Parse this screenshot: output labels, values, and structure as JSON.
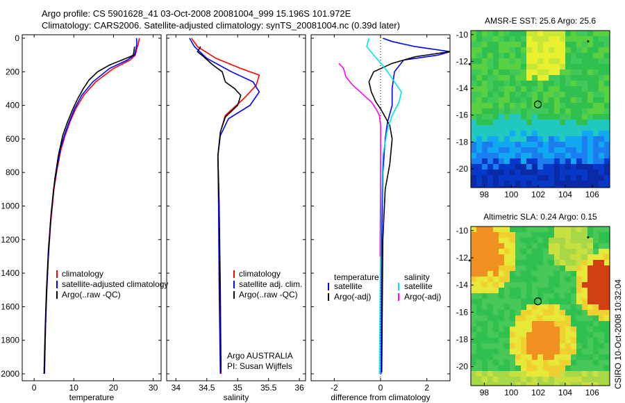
{
  "title": {
    "line1": "Argo profile: CS 5901628_41 03-Oct-2008 20081004_999 15.196S 101.972E",
    "line2": "Climatology: CARS2006. Satellite-adjusted climatology: synTS_20081004.nc (0.39d later)"
  },
  "credit": "CSIRO 10-Oct-2008 10:32:04",
  "colors": {
    "climatology": "#ff0000",
    "satellite": "#0000ff",
    "argo": "#000000",
    "sal_sat": "#00e5e5",
    "sal_argo": "#ff00ff"
  },
  "chart_data": [
    {
      "type": "line",
      "xlabel": "temperature",
      "xlim": [
        -3,
        32
      ],
      "ylim": [
        0,
        2050
      ],
      "xticks": [
        "0",
        "10",
        "20",
        "30"
      ],
      "xtick_values": [
        0,
        10,
        20,
        30
      ],
      "yticks": [
        "0",
        "200",
        "400",
        "600",
        "800",
        "1000",
        "1200",
        "1400",
        "1600",
        "1800",
        "2000"
      ],
      "ytick_values": [
        0,
        200,
        400,
        600,
        800,
        1000,
        1200,
        1400,
        1600,
        1800,
        2000
      ],
      "legend": [
        "climatology",
        "satellite-adjusted climatology",
        "Argo(..raw -QC)"
      ],
      "series": [
        {
          "name": "climatology",
          "color": "#ff0000",
          "x": [
            26.5,
            26.3,
            25.9,
            25.5,
            24.2,
            20,
            15.5,
            12.5,
            10.5,
            9,
            7.8,
            6.8,
            5.8,
            5,
            4.2,
            3.6,
            3.2,
            2.9,
            2.7,
            2.6
          ],
          "y": [
            0,
            30,
            60,
            100,
            130,
            180,
            260,
            340,
            420,
            500,
            580,
            660,
            780,
            900,
            1100,
            1300,
            1500,
            1700,
            1900,
            2000
          ]
        },
        {
          "name": "satellite-adjusted climatology",
          "color": "#0000ff",
          "x": [
            25.8,
            25.9,
            25.7,
            25.3,
            23.5,
            19,
            14.8,
            12,
            10.2,
            8.8,
            7.6,
            6.6,
            5.7,
            4.9,
            4.1,
            3.6,
            3.2,
            2.9,
            2.7,
            2.6
          ],
          "y": [
            0,
            30,
            60,
            100,
            130,
            180,
            260,
            340,
            420,
            500,
            580,
            660,
            780,
            900,
            1100,
            1300,
            1500,
            1700,
            1900,
            2000
          ]
        },
        {
          "name": "Argo(..raw -QC)",
          "color": "#000000",
          "x": [
            25.3,
            25.2,
            25,
            24.2,
            19,
            16,
            13.8,
            12.4,
            11,
            9.8,
            8.4,
            7.2,
            6.1,
            5.2,
            4.3,
            3.6,
            3.1,
            2.8,
            2.6,
            2.5
          ],
          "y": [
            50,
            70,
            100,
            110,
            160,
            200,
            250,
            300,
            360,
            420,
            500,
            580,
            700,
            840,
            1040,
            1260,
            1500,
            1720,
            1900,
            2000
          ]
        }
      ]
    },
    {
      "type": "line",
      "xlabel": "salinity",
      "xlim": [
        33.85,
        36.1
      ],
      "ylim": [
        0,
        2050
      ],
      "xticks": [
        "34",
        "34.5",
        "35",
        "35.5",
        "36"
      ],
      "xtick_values": [
        34,
        34.5,
        35,
        35.5,
        36
      ],
      "legend": [
        "climatology",
        "satellite adj. clim.",
        "Argo(..raw -QC)"
      ],
      "annotation": [
        "Argo AUSTRALIA",
        "PI: Susan Wijffels"
      ],
      "series": [
        {
          "name": "climatology",
          "color": "#ff0000",
          "x": [
            34.25,
            34.35,
            34.65,
            35.05,
            35.35,
            35.3,
            35.1,
            34.8,
            34.72,
            34.68,
            34.7,
            34.71,
            34.73
          ],
          "y": [
            0,
            50,
            120,
            180,
            220,
            280,
            360,
            460,
            560,
            700,
            1000,
            1500,
            2000
          ]
        },
        {
          "name": "satellite adj. clim.",
          "color": "#0000ff",
          "x": [
            34.22,
            34.3,
            34.5,
            34.9,
            35.25,
            35.35,
            35.2,
            34.85,
            34.72,
            34.68,
            34.69,
            34.7,
            34.72
          ],
          "y": [
            0,
            50,
            120,
            200,
            260,
            320,
            400,
            480,
            580,
            700,
            1000,
            1500,
            2000
          ]
        },
        {
          "name": "Argo(..raw -QC)",
          "color": "#000000",
          "x": [
            34.4,
            34.35,
            34.45,
            34.6,
            34.75,
            34.8,
            34.95,
            35.05,
            35,
            34.8,
            34.72,
            34.68,
            34.7,
            34.72,
            34.73
          ],
          "y": [
            50,
            80,
            110,
            160,
            200,
            260,
            300,
            340,
            400,
            470,
            560,
            700,
            1000,
            1500,
            1990
          ]
        }
      ]
    },
    {
      "type": "line",
      "xlabel": "difference from climatology",
      "xlim": [
        -3,
        3
      ],
      "ylim": [
        0,
        2050
      ],
      "xticks": [
        "-2",
        "0",
        "2"
      ],
      "xtick_values": [
        -2,
        0,
        2
      ],
      "legend_groups": [
        {
          "header": "temperature",
          "items": [
            "satellite",
            "Argo(-adj)"
          ]
        },
        {
          "header": "salinity",
          "items": [
            "satellite",
            "Argo(-adj)"
          ]
        }
      ],
      "series": [
        {
          "name": "temperature satellite",
          "color": "#0000ff",
          "x": [
            0.1,
            0.5,
            1.5,
            3,
            2.5,
            1,
            0.6,
            0.5,
            0.5,
            0.3,
            0.2,
            0.1,
            0.05,
            0.02
          ],
          "y": [
            0,
            20,
            50,
            80,
            100,
            130,
            200,
            300,
            400,
            500,
            600,
            800,
            1200,
            2000
          ]
        },
        {
          "name": "temperature Argo(-adj)",
          "color": "#000000",
          "x": [
            3,
            1.5,
            0.5,
            -0.3,
            -0.5,
            -0.4,
            -0.2,
            0,
            0.2,
            0.4,
            0.5,
            0.4,
            0.2,
            0.1,
            0.05
          ],
          "y": [
            80,
            110,
            150,
            200,
            260,
            320,
            380,
            420,
            470,
            520,
            600,
            750,
            900,
            1200,
            1990
          ]
        },
        {
          "name": "salinity satellite",
          "color": "#00e5e5",
          "x": [
            -0.5,
            -0.6,
            -0.3,
            0.2,
            0.6,
            0.9,
            0.8,
            0.5,
            0.3,
            0.1,
            0,
            -0.05
          ],
          "y": [
            0,
            50,
            100,
            180,
            260,
            320,
            380,
            460,
            540,
            700,
            1200,
            2000
          ]
        },
        {
          "name": "salinity Argo(-adj)",
          "color": "#ff00ff",
          "x": [
            -1.8,
            -1.6,
            -1.5,
            -1.2,
            -0.8,
            -0.4,
            -0.2,
            -0.05,
            0,
            0,
            -0.02
          ],
          "y": [
            150,
            180,
            230,
            280,
            330,
            380,
            420,
            460,
            520,
            800,
            1300
          ]
        }
      ]
    }
  ],
  "maps": [
    {
      "title": "AMSR-E SST: 25.6 Argo: 25.6",
      "xticks": [
        "98",
        "100",
        "102",
        "104",
        "106"
      ],
      "yticks": [
        "-10",
        "-12",
        "-14",
        "-16",
        "-18",
        "-20"
      ]
    },
    {
      "title": "Altimetric SLA: 0.24 Argo: 0.15",
      "xticks": [
        "98",
        "100",
        "102",
        "104",
        "106"
      ],
      "yticks": [
        "-10",
        "-12",
        "-14",
        "-16",
        "-18",
        "-20"
      ]
    }
  ]
}
